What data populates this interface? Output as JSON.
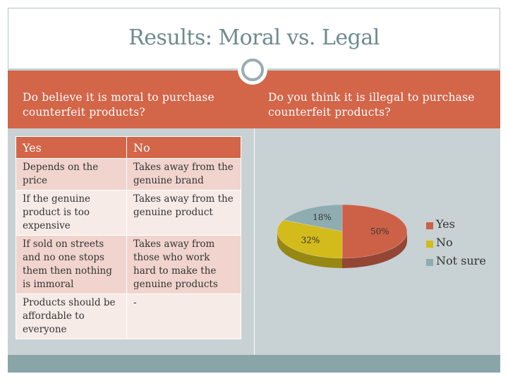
{
  "slide": {
    "title": "Results: Moral vs. Legal",
    "left_question": "Do believe it is moral to purchase counterfeit products?",
    "right_question": "Do you think it is illegal to purchase counterfeit products?"
  },
  "colors": {
    "accent": "#d36549",
    "panel": "#c8d1d4",
    "bottom_band": "#8aa5a8",
    "title_text": "#6e8a8e"
  },
  "table": {
    "headers": [
      "Yes",
      "No"
    ],
    "rows": [
      [
        "Depends on the price",
        "Takes away from the genuine brand"
      ],
      [
        "If the genuine product is too expensive",
        "Takes away from the genuine product"
      ],
      [
        "If sold on streets and no one stops them then nothing is immoral",
        "Takes away from those who work hard to make the genuine products"
      ],
      [
        "Products should be affordable to everyone",
        "-"
      ]
    ]
  },
  "chart_data": {
    "type": "pie",
    "title": "",
    "categories": [
      "Yes",
      "No",
      "Not sure"
    ],
    "values": [
      50,
      32,
      18
    ],
    "labels": [
      "50%",
      "32%",
      "18%"
    ],
    "colors": [
      "#cc6148",
      "#d2bb1b",
      "#8fadb0"
    ],
    "legend_position": "right",
    "style": "3d"
  }
}
